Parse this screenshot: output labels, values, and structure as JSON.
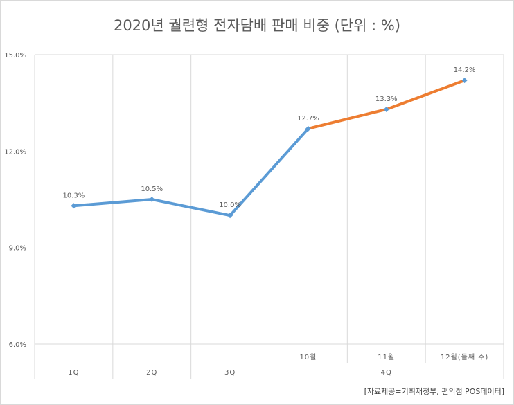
{
  "chart_data": {
    "type": "line",
    "title": "2020년 궐련형 전자담배 판매 비중 (단위 : %)",
    "xlabel": "",
    "ylabel": "",
    "ylim": [
      6.0,
      15.0
    ],
    "y_ticks": [
      "6.0%",
      "9.0%",
      "12.0%",
      "15.0%"
    ],
    "y_tick_values": [
      6.0,
      9.0,
      12.0,
      15.0
    ],
    "categories": [
      "1Q",
      "2Q",
      "3Q",
      "10월",
      "11월",
      "12월(둘째 주)"
    ],
    "group_labels": [
      {
        "label": "1Q",
        "span": [
          0,
          0
        ]
      },
      {
        "label": "2Q",
        "span": [
          1,
          1
        ]
      },
      {
        "label": "3Q",
        "span": [
          2,
          2
        ]
      },
      {
        "label": "4Q",
        "span": [
          3,
          5
        ]
      }
    ],
    "series": [
      {
        "values": [
          10.3,
          10.5,
          10.0,
          12.7,
          null,
          null
        ],
        "color": "#5b9bd5"
      },
      {
        "values": [
          null,
          null,
          null,
          12.7,
          13.3,
          14.2
        ],
        "color": "#ed7d31"
      }
    ],
    "data_labels": [
      "10.3%",
      "10.5%",
      "10.0%",
      "12.7%",
      "13.3%",
      "14.2%"
    ],
    "values": [
      10.3,
      10.5,
      10.0,
      12.7,
      13.3,
      14.2
    ],
    "marker_color": "#5b9bd5",
    "grid": {
      "vertical": true,
      "horizontal": false
    },
    "gridline_color": "#d9d9d9",
    "source": "[자료제공=기획재정부, 편의점 POS데이터]"
  }
}
